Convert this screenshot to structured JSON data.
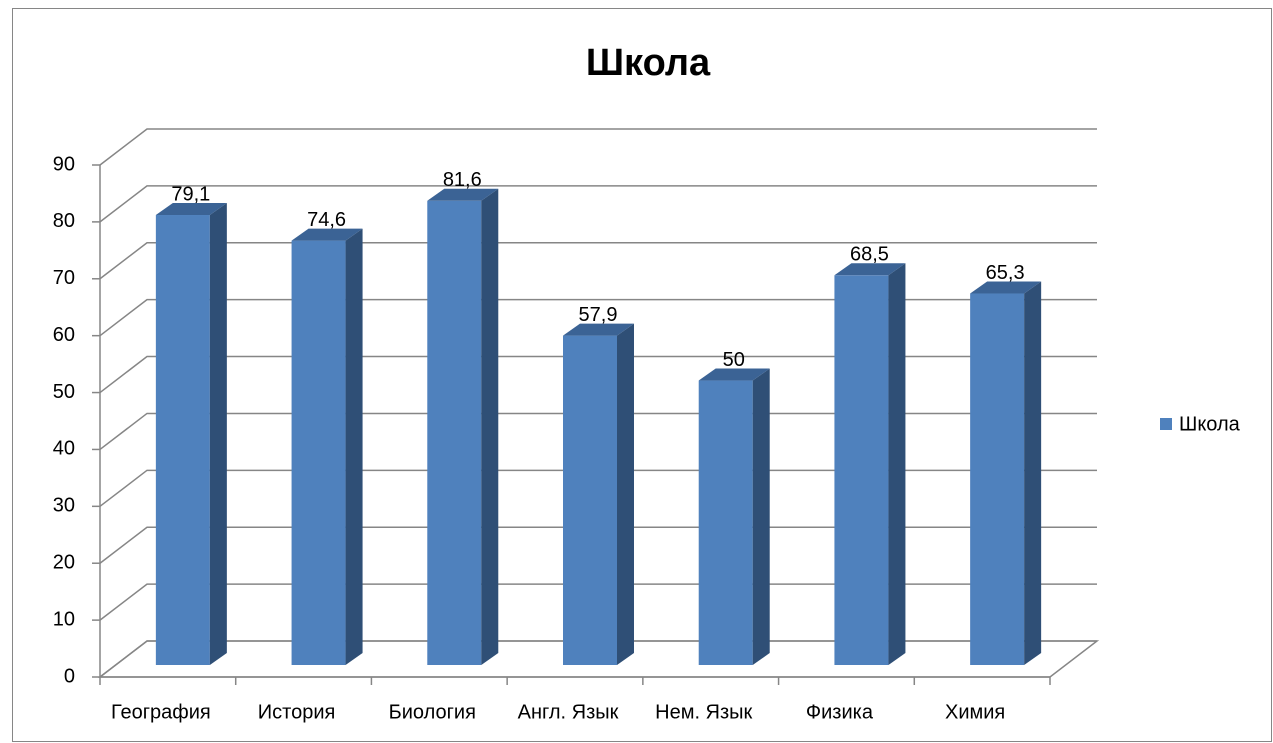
{
  "chart_data": {
    "type": "bar3d",
    "title": "Школа",
    "categories": [
      "География",
      "История",
      "Биология",
      "Англ. Язык",
      "Нем. Язык",
      "Физика",
      "Химия"
    ],
    "series": [
      {
        "name": "Школа",
        "color": "#4f81bd",
        "values": [
          79.1,
          74.6,
          81.6,
          57.9,
          50,
          68.5,
          65.3
        ],
        "value_labels": [
          "79,1",
          "74,6",
          "81,6",
          "57,9",
          "50",
          "68,5",
          "65,3"
        ]
      }
    ],
    "ylim": [
      0,
      90
    ],
    "yticks": [
      0,
      10,
      20,
      30,
      40,
      50,
      60,
      70,
      80,
      90
    ],
    "grid": true,
    "legend": "right"
  }
}
